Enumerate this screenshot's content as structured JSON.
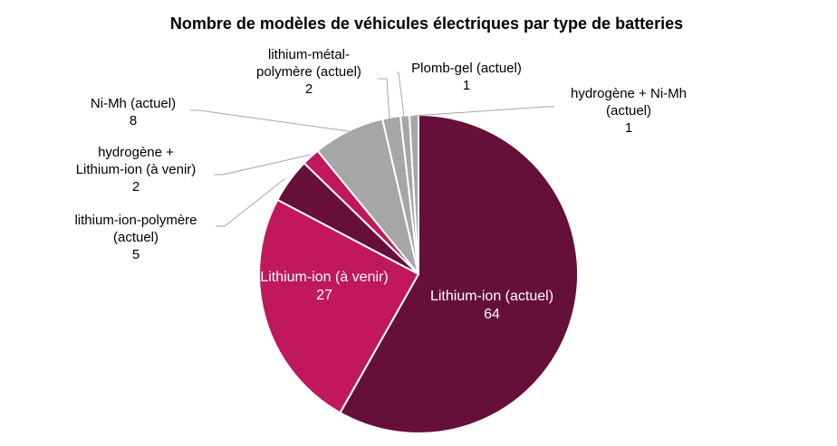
{
  "chart_data": {
    "type": "pie",
    "title": "Nombre de modèles de véhicules électriques par type de batteries",
    "slices": [
      {
        "name_lines": [
          "Lithium-ion (actuel)"
        ],
        "value": 64,
        "color": "#661039"
      },
      {
        "name_lines": [
          "Lithium-ion (à venir)"
        ],
        "value": 27,
        "color": "#c0185b"
      },
      {
        "name_lines": [
          "lithium-ion-polymère",
          "(actuel)"
        ],
        "value": 5,
        "color": "#661039"
      },
      {
        "name_lines": [
          "hydrogène +",
          "Lithium-ion (à venir)"
        ],
        "value": 2,
        "color": "#c0185b"
      },
      {
        "name_lines": [
          "Ni-Mh (actuel)"
        ],
        "value": 8,
        "color": "#a6a6a6"
      },
      {
        "name_lines": [
          "lithium-métal-",
          "polymère (actuel)"
        ],
        "value": 2,
        "color": "#a6a6a6"
      },
      {
        "name_lines": [
          "Plomb-gel  (actuel)"
        ],
        "value": 1,
        "color": "#a6a6a6"
      },
      {
        "name_lines": [
          "hydrogène + Ni-Mh",
          "(actuel)"
        ],
        "value": 1,
        "color": "#a6a6a6"
      }
    ]
  }
}
